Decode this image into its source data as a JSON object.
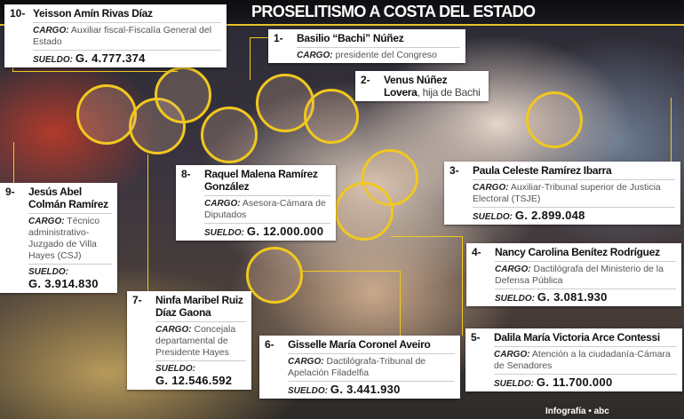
{
  "title": "PROSELITISMO A COSTA DEL ESTADO",
  "labels": {
    "cargo": "CARGO:",
    "sueldo": "SUELDO:"
  },
  "people": [
    {
      "num": "1-",
      "name": "Basilio “Bachi” Núñez",
      "cargo": "presidente del Congreso"
    },
    {
      "num": "2-",
      "name": "Venus Núñez Lovera",
      "note": ", hija de Bachi"
    },
    {
      "num": "3-",
      "name": "Paula Celeste Ramírez Ibarra",
      "cargo": "Auxiliar-Tribunal superior de Justicia Electoral (TSJE)",
      "sueldo": "G. 2.899.048"
    },
    {
      "num": "4-",
      "name": "Nancy Carolina Benítez Rodríguez",
      "cargo": "Dactilógrafa del Ministerio de la Defensa Pública",
      "sueldo": "G. 3.081.930"
    },
    {
      "num": "5-",
      "name": "Dalila María Victoria Arce Contessi",
      "cargo": "Atención a la ciudadanía-Cámara de Senadores",
      "sueldo": "G. 11.700.000"
    },
    {
      "num": "6-",
      "name": "Gisselle María Coronel Aveiro",
      "cargo": "Dactilógrafa-Tribunal de Apelación Filadelfia",
      "sueldo": "G. 3.441.930"
    },
    {
      "num": "7-",
      "name": "Ninfa Maribel Ruiz Díaz Gaona",
      "cargo": "Concejala departamental de Presidente Hayes",
      "sueldo": "G. 12.546.592"
    },
    {
      "num": "8-",
      "name": "Raquel Malena Ramírez González",
      "cargo": "Asesora-Cámara de Diputados",
      "sueldo": "G. 12.000.000"
    },
    {
      "num": "9-",
      "name": "Jesús Abel Colmán Ramírez",
      "cargo": "Técnico administrativo-Juzgado de Villa Hayes (CSJ)",
      "sueldo": "G. 3.914.830"
    },
    {
      "num": "10-",
      "name": "Yeisson Amín Rivas Díaz",
      "cargo": "Auxiliar fiscal-Fiscalía General del Estado",
      "sueldo": "G. 4.777.374"
    }
  ],
  "footer": "Infografía • abc",
  "colors": {
    "accent": "#f1c81e"
  }
}
